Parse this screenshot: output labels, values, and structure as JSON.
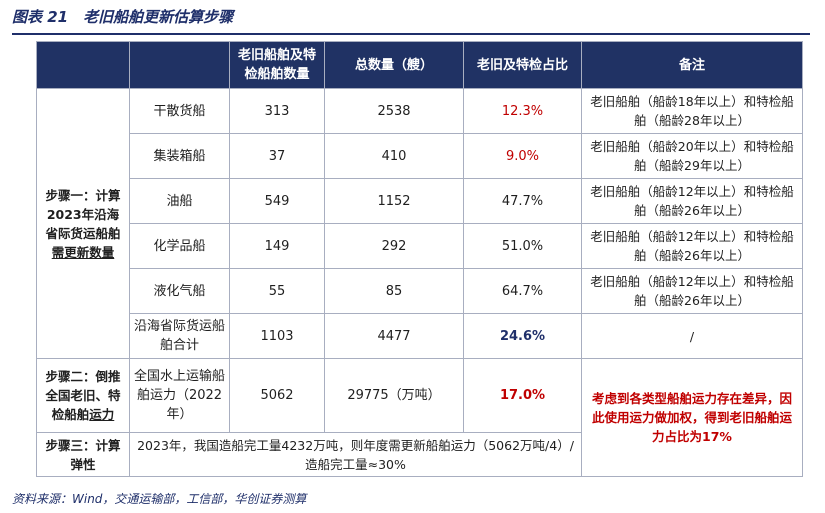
{
  "title": "图表 21　老旧船舶更新估算步骤",
  "source": "资料来源：Wind，交通运输部，工信部，华创证券测算",
  "headers": {
    "blank1": "",
    "blank2": "",
    "count_old": "老旧船舶及特检船舶数量",
    "total": "总数量（艘）",
    "ratio": "老旧及特检占比",
    "remark": "备注"
  },
  "step1": {
    "label_a": "步骤一：计算2023年沿海省际货运船舶",
    "label_b": "需更新数量"
  },
  "rows": [
    {
      "type": "干散货船",
      "old": "313",
      "total": "2538",
      "ratio": "12.3%",
      "remark": "老旧船舶（船龄18年以上）和特检船舶（船龄28年以上）"
    },
    {
      "type": "集装箱船",
      "old": "37",
      "total": "410",
      "ratio": "9.0%",
      "remark": "老旧船舶（船龄20年以上）和特检船舶（船龄29年以上）"
    },
    {
      "type": "油船",
      "old": "549",
      "total": "1152",
      "ratio": "47.7%",
      "remark": "老旧船舶（船龄12年以上）和特检船舶（船龄26年以上）"
    },
    {
      "type": "化学品船",
      "old": "149",
      "total": "292",
      "ratio": "51.0%",
      "remark": "老旧船舶（船龄12年以上）和特检船舶（船龄26年以上）"
    },
    {
      "type": "液化气船",
      "old": "55",
      "total": "85",
      "ratio": "64.7%",
      "remark": "老旧船舶（船龄12年以上）和特检船舶（船龄26年以上）"
    },
    {
      "type": "沿海省际货运船舶合计",
      "old": "1103",
      "total": "4477",
      "ratio": "24.6%",
      "remark": "/"
    }
  ],
  "step2": {
    "label_a": "步骤二：倒推全国老旧、特检船舶",
    "label_b": "运力",
    "type": "全国水上运输船舶运力（2022年）",
    "old": "5062",
    "total": "29775（万吨）",
    "ratio": "17.0%",
    "remark": "考虑到各类型船舶运力存在差异，因此使用运力做加权，得到老旧船舶运力占比为17%"
  },
  "step3": {
    "label": "步骤三：计算弹性",
    "text": "2023年，我国造船完工量4232万吨，则年度需更新船舶运力（5062万吨/4）/造船完工量≈30%"
  }
}
